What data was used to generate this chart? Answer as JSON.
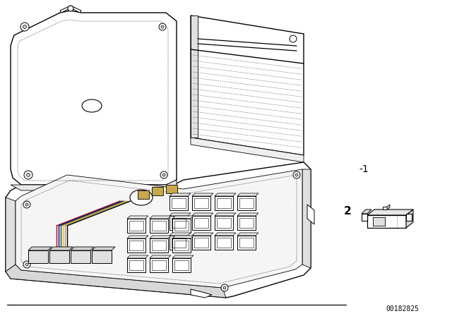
{
  "background_color": "#ffffff",
  "line_color": "#000000",
  "part_number": "00182825",
  "label_1": "-1",
  "label_2": "2",
  "fig_width": 6.4,
  "fig_height": 4.48,
  "dpi": 100,
  "lw_main": 1.0,
  "lw_thin": 0.6,
  "lw_dot": 0.5
}
